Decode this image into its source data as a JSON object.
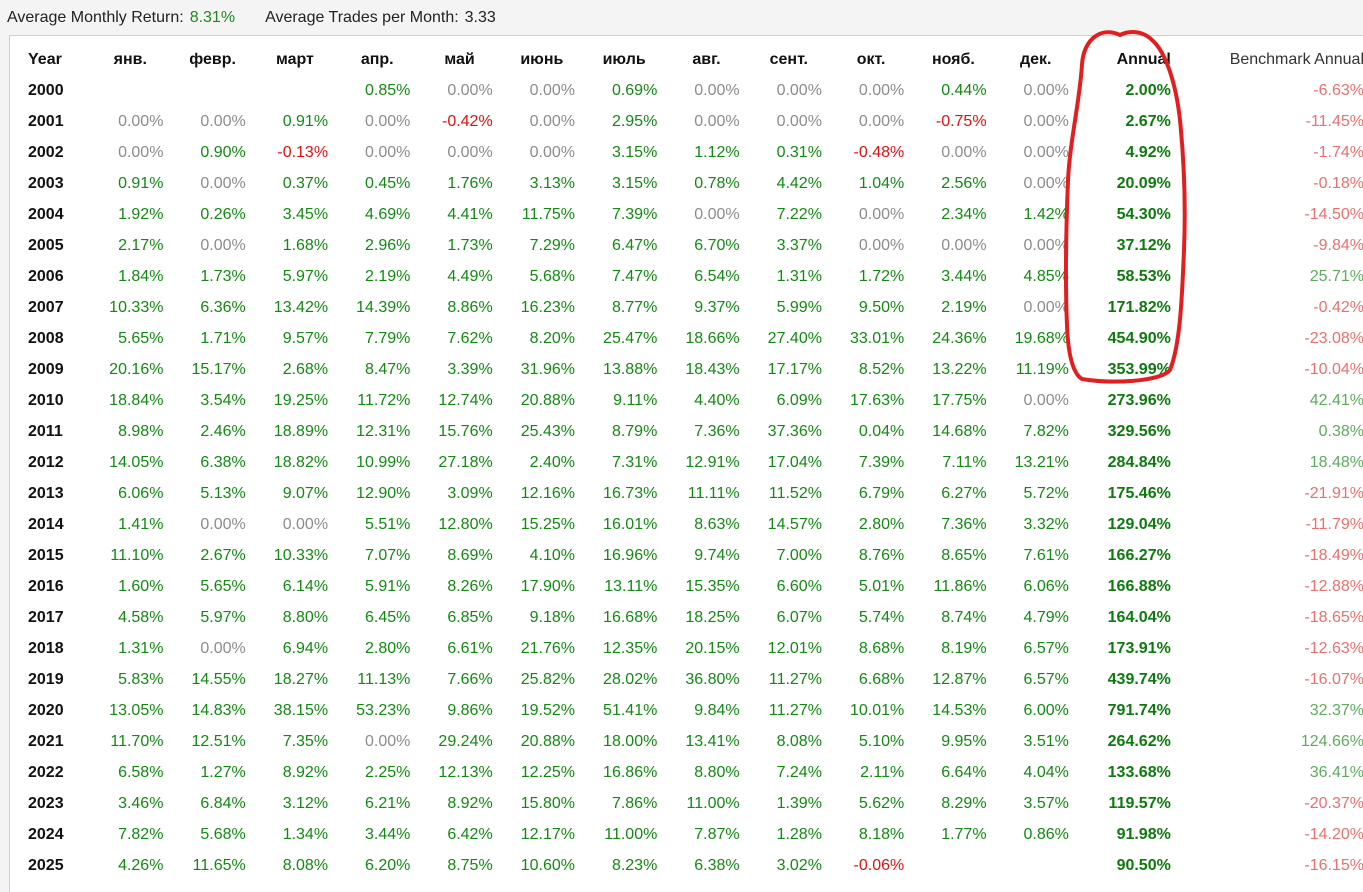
{
  "summary": {
    "avg_monthly_return_label": "Average Monthly Return:",
    "avg_monthly_return_value": "8.31%",
    "avg_trades_label": "Average Trades per Month:",
    "avg_trades_value": "3.33"
  },
  "table": {
    "headers": [
      "Year",
      "янв.",
      "февр.",
      "март",
      "апр.",
      "май",
      "июнь",
      "июль",
      "авг.",
      "сент.",
      "окт.",
      "нояб.",
      "дек.",
      "Annual",
      "Benchmark Annual"
    ],
    "rows": [
      {
        "year": "2000",
        "months": [
          "",
          "",
          "",
          "0.85%",
          "0.00%",
          "0.00%",
          "0.69%",
          "0.00%",
          "0.00%",
          "0.00%",
          "0.44%",
          "0.00%"
        ],
        "annual": "2.00%",
        "benchmark": "-6.63%"
      },
      {
        "year": "2001",
        "months": [
          "0.00%",
          "0.00%",
          "0.91%",
          "0.00%",
          "-0.42%",
          "0.00%",
          "2.95%",
          "0.00%",
          "0.00%",
          "0.00%",
          "-0.75%",
          "0.00%"
        ],
        "annual": "2.67%",
        "benchmark": "-11.45%"
      },
      {
        "year": "2002",
        "months": [
          "0.00%",
          "0.90%",
          "-0.13%",
          "0.00%",
          "0.00%",
          "0.00%",
          "3.15%",
          "1.12%",
          "0.31%",
          "-0.48%",
          "0.00%",
          "0.00%"
        ],
        "annual": "4.92%",
        "benchmark": "-1.74%"
      },
      {
        "year": "2003",
        "months": [
          "0.91%",
          "0.00%",
          "0.37%",
          "0.45%",
          "1.76%",
          "3.13%",
          "3.15%",
          "0.78%",
          "4.42%",
          "1.04%",
          "2.56%",
          "0.00%"
        ],
        "annual": "20.09%",
        "benchmark": "-0.18%"
      },
      {
        "year": "2004",
        "months": [
          "1.92%",
          "0.26%",
          "3.45%",
          "4.69%",
          "4.41%",
          "11.75%",
          "7.39%",
          "0.00%",
          "7.22%",
          "0.00%",
          "2.34%",
          "1.42%"
        ],
        "annual": "54.30%",
        "benchmark": "-14.50%"
      },
      {
        "year": "2005",
        "months": [
          "2.17%",
          "0.00%",
          "1.68%",
          "2.96%",
          "1.73%",
          "7.29%",
          "6.47%",
          "6.70%",
          "3.37%",
          "0.00%",
          "0.00%",
          "0.00%"
        ],
        "annual": "37.12%",
        "benchmark": "-9.84%"
      },
      {
        "year": "2006",
        "months": [
          "1.84%",
          "1.73%",
          "5.97%",
          "2.19%",
          "4.49%",
          "5.68%",
          "7.47%",
          "6.54%",
          "1.31%",
          "1.72%",
          "3.44%",
          "4.85%"
        ],
        "annual": "58.53%",
        "benchmark": "25.71%"
      },
      {
        "year": "2007",
        "months": [
          "10.33%",
          "6.36%",
          "13.42%",
          "14.39%",
          "8.86%",
          "16.23%",
          "8.77%",
          "9.37%",
          "5.99%",
          "9.50%",
          "2.19%",
          "0.00%"
        ],
        "annual": "171.82%",
        "benchmark": "-0.42%"
      },
      {
        "year": "2008",
        "months": [
          "5.65%",
          "1.71%",
          "9.57%",
          "7.79%",
          "7.62%",
          "8.20%",
          "25.47%",
          "18.66%",
          "27.40%",
          "33.01%",
          "24.36%",
          "19.68%"
        ],
        "annual": "454.90%",
        "benchmark": "-23.08%"
      },
      {
        "year": "2009",
        "months": [
          "20.16%",
          "15.17%",
          "2.68%",
          "8.47%",
          "3.39%",
          "31.96%",
          "13.88%",
          "18.43%",
          "17.17%",
          "8.52%",
          "13.22%",
          "11.19%"
        ],
        "annual": "353.99%",
        "benchmark": "-10.04%"
      },
      {
        "year": "2010",
        "months": [
          "18.84%",
          "3.54%",
          "19.25%",
          "11.72%",
          "12.74%",
          "20.88%",
          "9.11%",
          "4.40%",
          "6.09%",
          "17.63%",
          "17.75%",
          "0.00%"
        ],
        "annual": "273.96%",
        "benchmark": "42.41%"
      },
      {
        "year": "2011",
        "months": [
          "8.98%",
          "2.46%",
          "18.89%",
          "12.31%",
          "15.76%",
          "25.43%",
          "8.79%",
          "7.36%",
          "37.36%",
          "0.04%",
          "14.68%",
          "7.82%"
        ],
        "annual": "329.56%",
        "benchmark": "0.38%"
      },
      {
        "year": "2012",
        "months": [
          "14.05%",
          "6.38%",
          "18.82%",
          "10.99%",
          "27.18%",
          "2.40%",
          "7.31%",
          "12.91%",
          "17.04%",
          "7.39%",
          "7.11%",
          "13.21%"
        ],
        "annual": "284.84%",
        "benchmark": "18.48%"
      },
      {
        "year": "2013",
        "months": [
          "6.06%",
          "5.13%",
          "9.07%",
          "12.90%",
          "3.09%",
          "12.16%",
          "16.73%",
          "11.11%",
          "11.52%",
          "6.79%",
          "6.27%",
          "5.72%"
        ],
        "annual": "175.46%",
        "benchmark": "-21.91%"
      },
      {
        "year": "2014",
        "months": [
          "1.41%",
          "0.00%",
          "0.00%",
          "5.51%",
          "12.80%",
          "15.25%",
          "16.01%",
          "8.63%",
          "14.57%",
          "2.80%",
          "7.36%",
          "3.32%"
        ],
        "annual": "129.04%",
        "benchmark": "-11.79%"
      },
      {
        "year": "2015",
        "months": [
          "11.10%",
          "2.67%",
          "10.33%",
          "7.07%",
          "8.69%",
          "4.10%",
          "16.96%",
          "9.74%",
          "7.00%",
          "8.76%",
          "8.65%",
          "7.61%"
        ],
        "annual": "166.27%",
        "benchmark": "-18.49%"
      },
      {
        "year": "2016",
        "months": [
          "1.60%",
          "5.65%",
          "6.14%",
          "5.91%",
          "8.26%",
          "17.90%",
          "13.11%",
          "15.35%",
          "6.60%",
          "5.01%",
          "11.86%",
          "6.06%"
        ],
        "annual": "166.88%",
        "benchmark": "-12.88%"
      },
      {
        "year": "2017",
        "months": [
          "4.58%",
          "5.97%",
          "8.80%",
          "6.45%",
          "6.85%",
          "9.18%",
          "16.68%",
          "18.25%",
          "6.07%",
          "5.74%",
          "8.74%",
          "4.79%"
        ],
        "annual": "164.04%",
        "benchmark": "-18.65%"
      },
      {
        "year": "2018",
        "months": [
          "1.31%",
          "0.00%",
          "6.94%",
          "2.80%",
          "6.61%",
          "21.76%",
          "12.35%",
          "20.15%",
          "12.01%",
          "8.68%",
          "8.19%",
          "6.57%"
        ],
        "annual": "173.91%",
        "benchmark": "-12.63%"
      },
      {
        "year": "2019",
        "months": [
          "5.83%",
          "14.55%",
          "18.27%",
          "11.13%",
          "7.66%",
          "25.82%",
          "28.02%",
          "36.80%",
          "11.27%",
          "6.68%",
          "12.87%",
          "6.57%"
        ],
        "annual": "439.74%",
        "benchmark": "-16.07%"
      },
      {
        "year": "2020",
        "months": [
          "13.05%",
          "14.83%",
          "38.15%",
          "53.23%",
          "9.86%",
          "19.52%",
          "51.41%",
          "9.84%",
          "11.27%",
          "10.01%",
          "14.53%",
          "6.00%"
        ],
        "annual": "791.74%",
        "benchmark": "32.37%"
      },
      {
        "year": "2021",
        "months": [
          "11.70%",
          "12.51%",
          "7.35%",
          "0.00%",
          "29.24%",
          "20.88%",
          "18.00%",
          "13.41%",
          "8.08%",
          "5.10%",
          "9.95%",
          "3.51%"
        ],
        "annual": "264.62%",
        "benchmark": "124.66%"
      },
      {
        "year": "2022",
        "months": [
          "6.58%",
          "1.27%",
          "8.92%",
          "2.25%",
          "12.13%",
          "12.25%",
          "16.86%",
          "8.80%",
          "7.24%",
          "2.11%",
          "6.64%",
          "4.04%"
        ],
        "annual": "133.68%",
        "benchmark": "36.41%"
      },
      {
        "year": "2023",
        "months": [
          "3.46%",
          "6.84%",
          "3.12%",
          "6.21%",
          "8.92%",
          "15.80%",
          "7.86%",
          "11.00%",
          "1.39%",
          "5.62%",
          "8.29%",
          "3.57%"
        ],
        "annual": "119.57%",
        "benchmark": "-20.37%"
      },
      {
        "year": "2024",
        "months": [
          "7.82%",
          "5.68%",
          "1.34%",
          "3.44%",
          "6.42%",
          "12.17%",
          "11.00%",
          "7.87%",
          "1.28%",
          "8.18%",
          "1.77%",
          "0.86%"
        ],
        "annual": "91.98%",
        "benchmark": "-14.20%"
      },
      {
        "year": "2025",
        "months": [
          "4.26%",
          "11.65%",
          "8.08%",
          "6.20%",
          "8.75%",
          "10.60%",
          "8.23%",
          "6.38%",
          "3.02%",
          "-0.06%",
          "",
          ""
        ],
        "annual": "90.50%",
        "benchmark": "-16.15%"
      }
    ]
  },
  "colors": {
    "positive": "#128a12",
    "zero": "#8c8c8c",
    "negative": "#e01010",
    "annual": "#0e7a0e",
    "benchmark_positive": "#5faa5f",
    "benchmark_negative": "#e87070",
    "annotation": "#e02020"
  },
  "annotation": {
    "shape": "hand-drawn-ellipse",
    "highlights": "Annual column, years 2000-2009"
  }
}
